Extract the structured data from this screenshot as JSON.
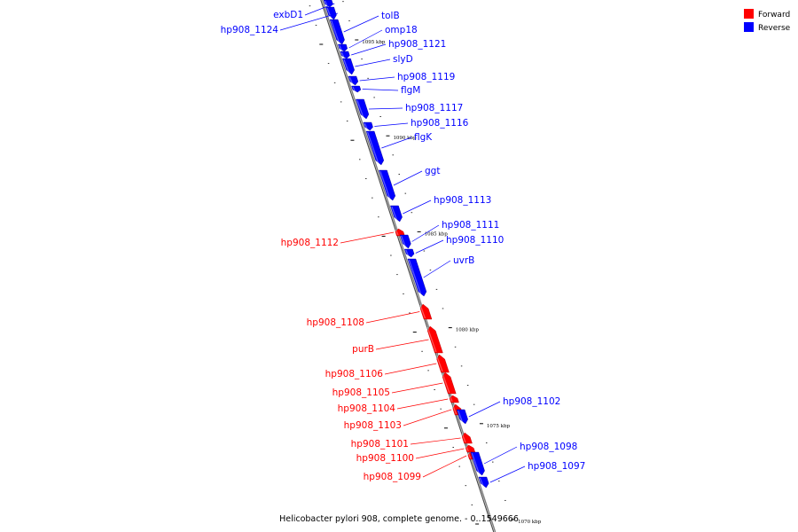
{
  "title": "Helicobacter pylori 908, complete genome. - 0..1549666",
  "legend": [
    {
      "label": "Forward",
      "color": "#ff0000"
    },
    {
      "label": "Reverse",
      "color": "#0000ff"
    }
  ],
  "colors": {
    "forward": "#ff0000",
    "reverse": "#0000ff",
    "axis": "#808080"
  },
  "ticks": [
    {
      "label": "1095 kbp",
      "pos": 1095
    },
    {
      "label": "1090 kbp",
      "pos": 1090
    },
    {
      "label": "1085 kbp",
      "pos": 1085
    },
    {
      "label": "1080 kbp",
      "pos": 1080
    },
    {
      "label": "1075 kbp",
      "pos": 1075
    },
    {
      "label": "1070 kbp",
      "pos": 1070
    }
  ],
  "genes": [
    {
      "name": "exbD1",
      "strand": "reverse"
    },
    {
      "name": "hp908_1124",
      "strand": "reverse"
    },
    {
      "name": "tolB",
      "strand": "reverse"
    },
    {
      "name": "omp18",
      "strand": "reverse"
    },
    {
      "name": "hp908_1121",
      "strand": "reverse"
    },
    {
      "name": "slyD",
      "strand": "reverse"
    },
    {
      "name": "hp908_1119",
      "strand": "reverse"
    },
    {
      "name": "flgM",
      "strand": "reverse"
    },
    {
      "name": "hp908_1117",
      "strand": "reverse"
    },
    {
      "name": "hp908_1116",
      "strand": "reverse"
    },
    {
      "name": "flgK",
      "strand": "reverse"
    },
    {
      "name": "ggt",
      "strand": "reverse"
    },
    {
      "name": "hp908_1113",
      "strand": "reverse"
    },
    {
      "name": "hp908_1112",
      "strand": "forward"
    },
    {
      "name": "hp908_1111",
      "strand": "reverse"
    },
    {
      "name": "hp908_1110",
      "strand": "reverse"
    },
    {
      "name": "uvrB",
      "strand": "reverse"
    },
    {
      "name": "hp908_1108",
      "strand": "forward"
    },
    {
      "name": "purB",
      "strand": "forward"
    },
    {
      "name": "hp908_1106",
      "strand": "forward"
    },
    {
      "name": "hp908_1105",
      "strand": "forward"
    },
    {
      "name": "hp908_1104",
      "strand": "forward"
    },
    {
      "name": "hp908_1103",
      "strand": "forward"
    },
    {
      "name": "hp908_1102",
      "strand": "reverse"
    },
    {
      "name": "hp908_1101",
      "strand": "forward"
    },
    {
      "name": "hp908_1100",
      "strand": "forward"
    },
    {
      "name": "hp908_1099",
      "strand": "forward"
    },
    {
      "name": "hp908_1098",
      "strand": "reverse"
    },
    {
      "name": "hp908_1097",
      "strand": "reverse"
    }
  ]
}
